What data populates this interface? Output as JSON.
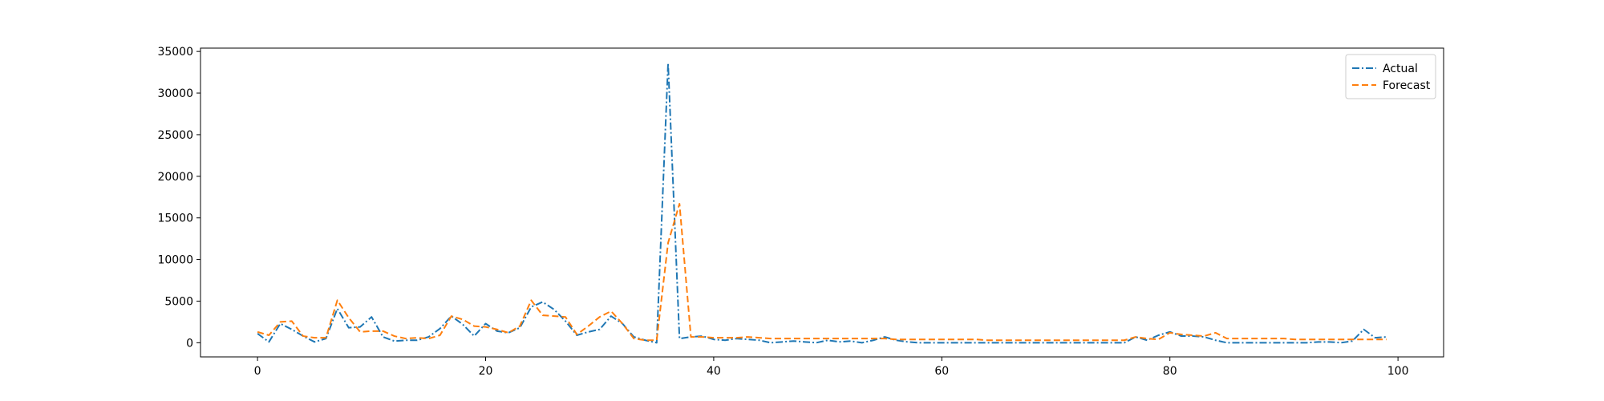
{
  "chart_data": {
    "type": "line",
    "title": "",
    "xlabel": "",
    "ylabel": "",
    "xlim": [
      -5,
      104
    ],
    "ylim": [
      -1700,
      35400
    ],
    "grid": false,
    "legend_position": "top-right",
    "x_ticks": [
      0,
      20,
      40,
      60,
      80,
      100
    ],
    "y_ticks": [
      0,
      5000,
      10000,
      15000,
      20000,
      25000,
      30000,
      35000
    ],
    "x_tick_labels": [
      "0",
      "20",
      "40",
      "60",
      "80",
      "100"
    ],
    "y_tick_labels": [
      "0",
      "5000",
      "10000",
      "15000",
      "20000",
      "25000",
      "30000",
      "35000"
    ],
    "series": [
      {
        "name": "Actual",
        "color": "#1f77b4",
        "style": "dashdot",
        "values": [
          1100,
          100,
          2300,
          1600,
          800,
          100,
          500,
          4100,
          1800,
          1900,
          3100,
          700,
          200,
          300,
          300,
          700,
          1700,
          3200,
          2200,
          800,
          2300,
          1400,
          1200,
          1800,
          4300,
          4900,
          4000,
          2600,
          900,
          1300,
          1600,
          3200,
          2300,
          700,
          300,
          0,
          33600,
          500,
          700,
          800,
          400,
          300,
          500,
          400,
          300,
          0,
          100,
          200,
          100,
          0,
          300,
          100,
          200,
          0,
          300,
          700,
          300,
          100,
          0,
          0,
          0,
          0,
          0,
          0,
          0,
          0,
          0,
          0,
          0,
          0,
          0,
          0,
          0,
          0,
          0,
          0,
          0,
          700,
          300,
          900,
          1300,
          800,
          800,
          700,
          300,
          0,
          0,
          0,
          0,
          0,
          0,
          0,
          0,
          100,
          100,
          0,
          200,
          1600,
          600,
          700
        ]
      },
      {
        "name": "Forecast",
        "color": "#ff7f0e",
        "style": "dashed",
        "values": [
          1300,
          900,
          2500,
          2600,
          800,
          600,
          600,
          5100,
          3000,
          1300,
          1400,
          1400,
          800,
          500,
          600,
          500,
          900,
          3200,
          2800,
          2000,
          1900,
          1600,
          1200,
          2000,
          5100,
          3300,
          3200,
          3100,
          1000,
          2000,
          3100,
          3800,
          2300,
          500,
          300,
          300,
          12000,
          16700,
          700,
          700,
          600,
          600,
          600,
          700,
          600,
          500,
          500,
          500,
          500,
          500,
          500,
          500,
          500,
          500,
          500,
          500,
          400,
          400,
          400,
          400,
          400,
          400,
          400,
          400,
          300,
          300,
          300,
          300,
          300,
          300,
          300,
          300,
          300,
          300,
          300,
          300,
          300,
          700,
          500,
          400,
          1200,
          1000,
          900,
          800,
          1200,
          500,
          500,
          500,
          500,
          500,
          500,
          400,
          400,
          400,
          400,
          400,
          400,
          400,
          400,
          400
        ]
      }
    ]
  }
}
